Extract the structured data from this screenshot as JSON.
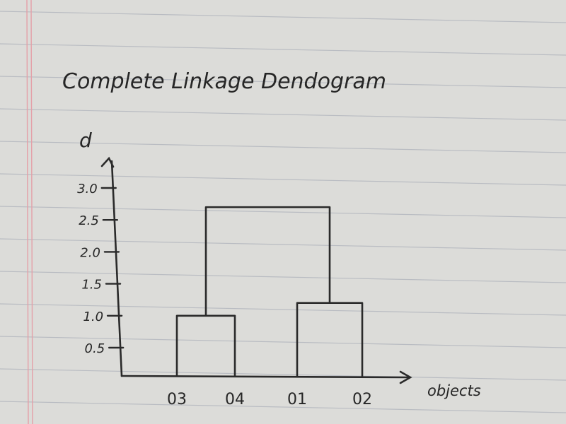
{
  "title": "Complete Linkage Dendogram",
  "y_axis_label": "d",
  "x_axis_label": "objects",
  "chart_data": {
    "type": "dendrogram",
    "linkage": "complete",
    "y_ticks": [
      "3.0",
      "2.5",
      "2.0",
      "1.5",
      "1.0",
      "0.5"
    ],
    "y_tick_values": [
      3.0,
      2.5,
      2.0,
      1.5,
      1.0,
      0.5
    ],
    "leaves": [
      "03",
      "04",
      "01",
      "02"
    ],
    "merges": [
      {
        "left": "03",
        "right": "04",
        "height": 1.0
      },
      {
        "left": "01",
        "right": "02",
        "height": 1.2
      },
      {
        "left": "03-04",
        "right": "01-02",
        "height": 2.7
      }
    ]
  }
}
